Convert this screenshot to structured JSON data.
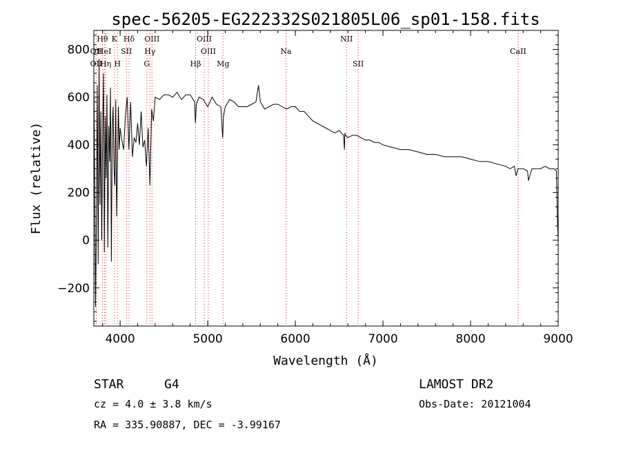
{
  "chart_data": {
    "type": "line",
    "title": "spec-56205-EG222332S021805L06_sp01-158.fits",
    "xlabel": "Wavelength (Å)",
    "ylabel": "Flux (relative)",
    "xlim": [
      3700,
      9000
    ],
    "ylim": [
      -360,
      880
    ],
    "x_ticks": [
      4000,
      5000,
      6000,
      7000,
      8000,
      9000
    ],
    "y_ticks": [
      -200,
      0,
      200,
      400,
      600,
      800
    ],
    "grid": false,
    "line_color": "#000000",
    "marker_color": "#d62728",
    "series": [
      {
        "x": [
          3700,
          3710,
          3720,
          3730,
          3740,
          3750,
          3760,
          3770,
          3780,
          3790,
          3800,
          3810,
          3820,
          3830,
          3840,
          3850,
          3860,
          3870,
          3880,
          3890,
          3900,
          3910,
          3920,
          3930,
          3940,
          3950,
          3960,
          3970,
          3980,
          3990,
          4000,
          4020,
          4040,
          4060,
          4080,
          4100,
          4120,
          4140,
          4160,
          4180,
          4200,
          4220,
          4240,
          4260,
          4280,
          4300,
          4320,
          4340,
          4360,
          4380,
          4400,
          4450,
          4500,
          4550,
          4600,
          4650,
          4700,
          4750,
          4800,
          4850,
          4860,
          4870,
          4900,
          4950,
          5000,
          5050,
          5100,
          5150,
          5170,
          5180,
          5200,
          5250,
          5300,
          5350,
          5400,
          5450,
          5500,
          5550,
          5580,
          5600,
          5650,
          5700,
          5750,
          5800,
          5850,
          5900,
          5950,
          6000,
          6050,
          6100,
          6150,
          6200,
          6250,
          6300,
          6350,
          6400,
          6450,
          6500,
          6550,
          6560,
          6565,
          6570,
          6600,
          6650,
          6700,
          6750,
          6800,
          6850,
          6900,
          6950,
          7000,
          7100,
          7200,
          7300,
          7400,
          7500,
          7600,
          7700,
          7800,
          7900,
          8000,
          8100,
          8200,
          8300,
          8400,
          8450,
          8500,
          8520,
          8540,
          8550,
          8600,
          8650,
          8660,
          8700,
          8750,
          8800,
          8850,
          8900,
          8950,
          8980,
          8990,
          9000
        ],
        "y": [
          700,
          200,
          -280,
          100,
          650,
          -100,
          760,
          150,
          540,
          0,
          430,
          700,
          -50,
          520,
          260,
          610,
          -30,
          480,
          330,
          640,
          -90,
          470,
          560,
          300,
          230,
          590,
          100,
          330,
          560,
          380,
          470,
          420,
          380,
          520,
          600,
          380,
          580,
          350,
          430,
          410,
          490,
          400,
          540,
          390,
          420,
          310,
          470,
          230,
          550,
          500,
          600,
          590,
          610,
          610,
          600,
          620,
          590,
          610,
          610,
          580,
          490,
          570,
          600,
          590,
          560,
          600,
          570,
          560,
          430,
          520,
          560,
          590,
          580,
          560,
          560,
          560,
          570,
          580,
          650,
          580,
          550,
          560,
          570,
          570,
          560,
          550,
          560,
          560,
          540,
          540,
          520,
          500,
          490,
          480,
          470,
          460,
          450,
          460,
          440,
          380,
          450,
          440,
          430,
          440,
          440,
          430,
          420,
          420,
          410,
          410,
          400,
          390,
          380,
          380,
          370,
          360,
          360,
          350,
          350,
          350,
          340,
          330,
          330,
          320,
          310,
          300,
          310,
          270,
          300,
          300,
          300,
          290,
          250,
          300,
          300,
          300,
          310,
          300,
          300,
          290,
          100,
          0
        ]
      }
    ],
    "lines": [
      {
        "label": "Hθ",
        "x": 3798
      },
      {
        "label": "K",
        "x": 3934
      },
      {
        "label": "Hδ",
        "x": 4102
      },
      {
        "label": "OII",
        "x": 3727
      },
      {
        "label": "HeI",
        "x": 3820
      },
      {
        "label": "SII",
        "x": 4072
      },
      {
        "label": "OIII",
        "x": 4364
      },
      {
        "label": "Hγ",
        "x": 4340
      },
      {
        "label": "OII",
        "x": 3727
      },
      {
        "label": "Hη",
        "x": 3835
      },
      {
        "label": "H",
        "x": 3969
      },
      {
        "label": "G",
        "x": 4305
      },
      {
        "label": "OIII",
        "x": 4960
      },
      {
        "label": "OIII",
        "x": 5007
      },
      {
        "label": "Hβ",
        "x": 4861
      },
      {
        "label": "Mg",
        "x": 5175
      },
      {
        "label": "Na",
        "x": 5893
      },
      {
        "label": "NII",
        "x": 6584
      },
      {
        "label": "SII",
        "x": 6717
      },
      {
        "label": "CaII",
        "x": 8542
      }
    ]
  },
  "info": {
    "class_label": "STAR",
    "subclass": "G4",
    "survey": "LAMOST DR2",
    "cz": "cz = 4.0 ± 3.8 km/s",
    "obs_date": "Obs-Date: 20121004",
    "radec": "RA = 335.90887, DEC =  -3.99167"
  }
}
